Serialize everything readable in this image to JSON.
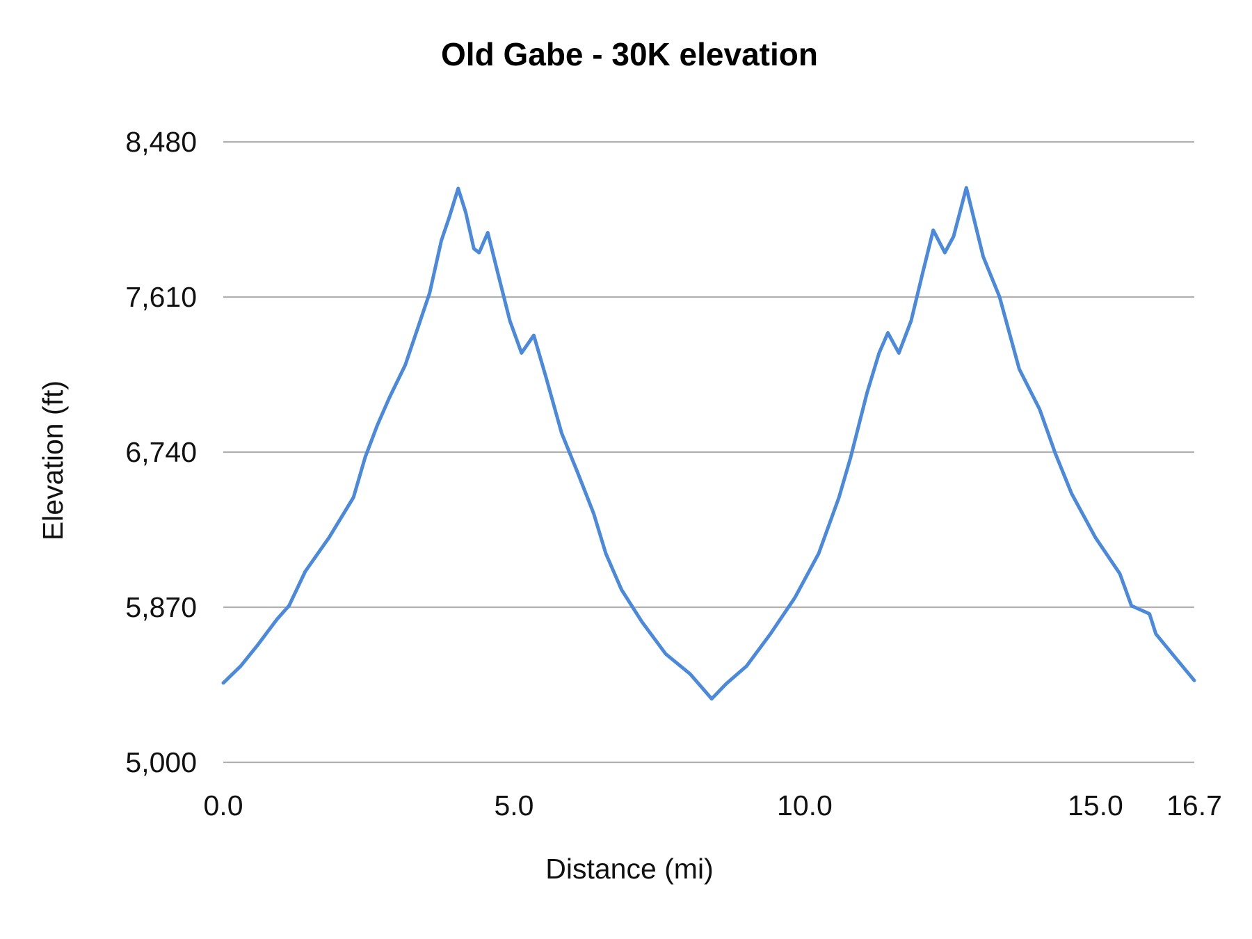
{
  "chart_data": {
    "type": "line",
    "title": "Old Gabe - 30K elevation",
    "xlabel": "Distance (mi)",
    "ylabel": "Elevation (ft)",
    "xlim": [
      0,
      16.7
    ],
    "ylim": [
      5000,
      8480
    ],
    "x_ticks": [
      "0.0",
      "5.0",
      "10.0",
      "15.0",
      "16.7"
    ],
    "x_tick_values": [
      0,
      5,
      10,
      15,
      16.7
    ],
    "y_ticks": [
      "5,000",
      "5,870",
      "6,740",
      "7,610",
      "8,480"
    ],
    "y_tick_values": [
      5000,
      5870,
      6740,
      7610,
      8480
    ],
    "grid": "horizontal",
    "line_color": "#4a89dc",
    "grid_color": "#b0b0b0",
    "series": [
      {
        "x": [
          0,
          0.3,
          0.58,
          0.92,
          1.13,
          1.41,
          1.82,
          2.24,
          2.44,
          2.65,
          2.86,
          3.13,
          3.34,
          3.55,
          3.75,
          3.89,
          4.04,
          4.17,
          4.31,
          4.4,
          4.55,
          4.72,
          4.93,
          5.13,
          5.34,
          5.55,
          5.82,
          6.1,
          6.37,
          6.58,
          6.85,
          7.2,
          7.61,
          8.03,
          8.4,
          8.65,
          9.0,
          9.41,
          9.83,
          10.24,
          10.59,
          10.79,
          11.07,
          11.28,
          11.43,
          11.62,
          11.83,
          12.03,
          12.21,
          12.41,
          12.56,
          12.78,
          13.07,
          13.35,
          13.69,
          14.04,
          14.31,
          14.59,
          15.0,
          15.42,
          15.62,
          15.93,
          16.04,
          16.38,
          16.7
        ],
        "y": [
          5445,
          5540,
          5653,
          5801,
          5878,
          6071,
          6261,
          6486,
          6711,
          6891,
          7048,
          7228,
          7431,
          7634,
          7926,
          8061,
          8219,
          8084,
          7881,
          7859,
          7971,
          7746,
          7476,
          7296,
          7395,
          7161,
          6846,
          6621,
          6396,
          6171,
          5968,
          5788,
          5608,
          5495,
          5356,
          5441,
          5540,
          5720,
          5923,
          6171,
          6486,
          6711,
          7071,
          7296,
          7409,
          7296,
          7476,
          7746,
          7985,
          7859,
          7949,
          8223,
          7836,
          7611,
          7206,
          6981,
          6733,
          6508,
          6261,
          6058,
          5878,
          5833,
          5720,
          5585,
          5459
        ]
      }
    ]
  }
}
